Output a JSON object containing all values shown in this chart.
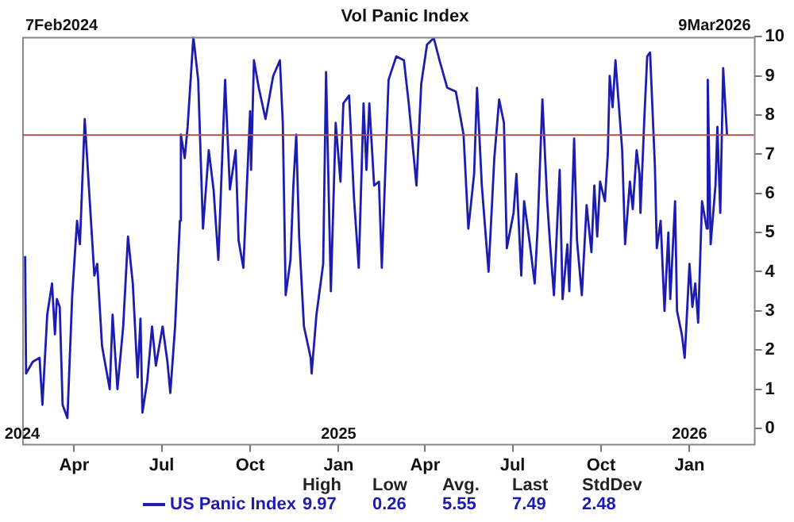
{
  "chart_data": {
    "type": "line",
    "title": "Vol Panic Index",
    "x": [
      "2024-02-10",
      "2024-02-11",
      "2024-02-18",
      "2024-02-25",
      "2024-02-28",
      "2024-03-04",
      "2024-03-09",
      "2024-03-12",
      "2024-03-14",
      "2024-03-17",
      "2024-03-20",
      "2024-03-25",
      "2024-03-30",
      "2024-04-04",
      "2024-04-07",
      "2024-04-12",
      "2024-04-17",
      "2024-04-22",
      "2024-04-25",
      "2024-04-30",
      "2024-05-08",
      "2024-05-11",
      "2024-05-16",
      "2024-05-22",
      "2024-05-27",
      "2024-06-01",
      "2024-06-06",
      "2024-06-09",
      "2024-06-11",
      "2024-06-16",
      "2024-06-21",
      "2024-06-25",
      "2024-07-02",
      "2024-07-07",
      "2024-07-10",
      "2024-07-15",
      "2024-07-20",
      "2024-07-21",
      "2024-07-25",
      "2024-07-28",
      "2024-08-03",
      "2024-08-08",
      "2024-08-13",
      "2024-08-19",
      "2024-08-24",
      "2024-08-29",
      "2024-09-05",
      "2024-09-10",
      "2024-09-16",
      "2024-09-19",
      "2024-09-24",
      "2024-10-01",
      "2024-10-02",
      "2024-10-05",
      "2024-10-10",
      "2024-10-17",
      "2024-10-25",
      "2024-11-01",
      "2024-11-04",
      "2024-11-07",
      "2024-11-12",
      "2024-11-15",
      "2024-11-18",
      "2024-11-21",
      "2024-11-26",
      "2024-12-03",
      "2024-12-04",
      "2024-12-09",
      "2024-12-16",
      "2024-12-19",
      "2024-12-24",
      "2024-12-29",
      "2025-01-03",
      "2025-01-06",
      "2025-01-12",
      "2025-01-17",
      "2025-01-22",
      "2025-01-27",
      "2025-01-30",
      "2025-02-02",
      "2025-02-07",
      "2025-02-12",
      "2025-02-15",
      "2025-02-22",
      "2025-03-02",
      "2025-03-10",
      "2025-03-15",
      "2025-03-23",
      "2025-03-28",
      "2025-04-03",
      "2025-04-10",
      "2025-04-16",
      "2025-04-24",
      "2025-05-03",
      "2025-05-11",
      "2025-05-16",
      "2025-05-22",
      "2025-05-25",
      "2025-05-30",
      "2025-06-06",
      "2025-06-12",
      "2025-06-17",
      "2025-06-22",
      "2025-06-25",
      "2025-07-02",
      "2025-07-05",
      "2025-07-10",
      "2025-07-13",
      "2025-07-19",
      "2025-07-24",
      "2025-07-27",
      "2025-08-01",
      "2025-08-06",
      "2025-08-09",
      "2025-08-13",
      "2025-08-19",
      "2025-08-22",
      "2025-08-27",
      "2025-08-29",
      "2025-09-03",
      "2025-09-06",
      "2025-09-11",
      "2025-09-16",
      "2025-09-21",
      "2025-09-24",
      "2025-09-27",
      "2025-09-30",
      "2025-10-05",
      "2025-10-08",
      "2025-10-10",
      "2025-10-13",
      "2025-10-16",
      "2025-10-23",
      "2025-10-26",
      "2025-10-31",
      "2025-11-03",
      "2025-11-07",
      "2025-11-10",
      "2025-11-11",
      "2025-11-15",
      "2025-11-18",
      "2025-11-21",
      "2025-11-26",
      "2025-11-28",
      "2025-12-02",
      "2025-12-06",
      "2025-12-10",
      "2025-12-12",
      "2025-12-17",
      "2025-12-19",
      "2025-12-24",
      "2025-12-27",
      "2026-01-01",
      "2026-01-04",
      "2026-01-07",
      "2026-01-10",
      "2026-01-14",
      "2026-01-19",
      "2026-01-20",
      "2026-01-23",
      "2026-01-28",
      "2026-01-30",
      "2026-02-02",
      "2026-02-05",
      "2026-02-09"
    ],
    "series": [
      {
        "name": "US Panic Index",
        "color": "#1c1cb0",
        "values": [
          4.4,
          1.4,
          1.7,
          1.8,
          0.6,
          2.9,
          3.7,
          2.4,
          3.3,
          3.1,
          0.6,
          0.26,
          3.4,
          5.3,
          4.7,
          7.9,
          5.9,
          3.9,
          4.2,
          2.1,
          1.0,
          2.9,
          1.0,
          2.6,
          4.9,
          3.7,
          1.3,
          2.8,
          0.4,
          1.2,
          2.6,
          1.6,
          2.6,
          1.7,
          0.9,
          2.6,
          5.3,
          7.5,
          6.9,
          7.7,
          10.0,
          8.9,
          5.1,
          7.1,
          6.1,
          4.3,
          8.9,
          6.1,
          7.1,
          4.8,
          4.1,
          8.1,
          6.6,
          9.4,
          8.7,
          7.9,
          9.0,
          9.4,
          7.8,
          3.4,
          4.3,
          6.2,
          7.5,
          4.9,
          2.6,
          1.8,
          1.4,
          2.9,
          4.2,
          9.1,
          3.5,
          7.8,
          6.3,
          8.3,
          8.5,
          5.9,
          4.1,
          8.3,
          6.6,
          8.3,
          6.2,
          6.3,
          4.1,
          8.9,
          9.5,
          9.4,
          8.3,
          6.2,
          8.8,
          9.8,
          9.97,
          9.4,
          8.7,
          8.6,
          7.5,
          5.1,
          6.5,
          8.7,
          6.2,
          4.0,
          6.9,
          8.4,
          7.8,
          4.6,
          5.5,
          6.5,
          3.9,
          5.8,
          4.7,
          3.7,
          5.1,
          8.4,
          5.8,
          4.7,
          3.4,
          6.6,
          3.3,
          4.7,
          3.5,
          7.4,
          4.8,
          3.4,
          5.7,
          4.5,
          6.2,
          4.9,
          6.3,
          5.8,
          7.0,
          9.0,
          8.2,
          9.4,
          7.1,
          4.7,
          6.3,
          5.6,
          7.1,
          6.5,
          5.5,
          7.9,
          9.5,
          9.6,
          6.7,
          4.6,
          5.3,
          3.0,
          5.0,
          3.3,
          5.8,
          3.0,
          2.4,
          1.8,
          4.2,
          3.1,
          3.7,
          2.7,
          5.8,
          5.1,
          8.9,
          4.7,
          6.2,
          7.7,
          5.5,
          9.2,
          7.49
        ]
      }
    ],
    "xlim": [
      "2024-02-07",
      "2026-03-09"
    ],
    "xticks": [
      {
        "value": "2024-04-01",
        "label": "Apr"
      },
      {
        "value": "2024-07-01",
        "label": "Jul"
      },
      {
        "value": "2024-10-01",
        "label": "Oct"
      },
      {
        "value": "2025-01-01",
        "label": "Jan"
      },
      {
        "value": "2025-04-01",
        "label": "Apr"
      },
      {
        "value": "2025-07-01",
        "label": "Jul"
      },
      {
        "value": "2025-10-01",
        "label": "Oct"
      },
      {
        "value": "2026-01-01",
        "label": "Jan"
      }
    ],
    "ylim": [
      -0.4,
      10
    ],
    "yticks": [
      0,
      1,
      2,
      3,
      4,
      5,
      6,
      7,
      8,
      9,
      10
    ],
    "ref_lines": [
      {
        "axis": "y",
        "value": 7.49,
        "color": "#b05050"
      }
    ],
    "x2lim": [
      "2024-02-07",
      "2026-03-09"
    ],
    "x2ticks": [
      {
        "value": "2024-02-07",
        "label": "2024"
      },
      {
        "value": "2025-01-01",
        "label": "2025"
      },
      {
        "value": "2026-01-01",
        "label": "2026"
      }
    ],
    "annotations": [
      "7Feb2024",
      "9Mar2026",
      "High 9.97",
      "Low 0.26",
      "Avg. 5.55",
      "Last 7.49",
      "StdDev 2.48"
    ],
    "grid": false,
    "legend": "bottom",
    "marker": "none",
    "line_style": "solid"
  }
}
